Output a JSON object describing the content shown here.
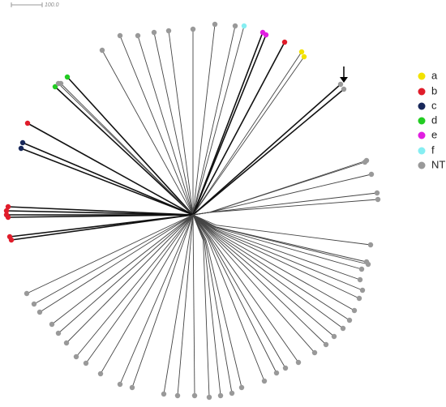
{
  "scale_bar": {
    "label": "100.0"
  },
  "legend": {
    "items": [
      {
        "label": "a",
        "color": "#f2e200"
      },
      {
        "label": "b",
        "color": "#e01c2a"
      },
      {
        "label": "c",
        "color": "#18285a"
      },
      {
        "label": "d",
        "color": "#22cc22"
      },
      {
        "label": "e",
        "color": "#e01ee0"
      },
      {
        "label": "f",
        "color": "#86eef2"
      },
      {
        "label": "NT",
        "color": "#999999"
      }
    ]
  }
}
